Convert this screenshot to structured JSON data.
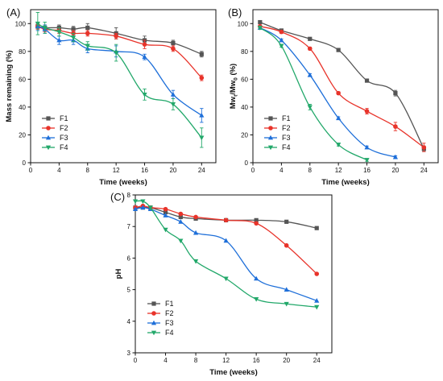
{
  "colors": {
    "F1": "#555555",
    "F2": "#e8332a",
    "F3": "#1e6fd9",
    "F4": "#22a86a"
  },
  "markers": {
    "F1": "square",
    "F2": "circle",
    "F3": "triangle-up",
    "F4": "triangle-down"
  },
  "chart_data": [
    {
      "type": "line",
      "panel_label": "(A)",
      "xlabel": "Time (weeks)",
      "ylabel": "Mass remaining (%)",
      "xlim": [
        0,
        26
      ],
      "ylim": [
        0,
        110
      ],
      "xticks": [
        0,
        4,
        8,
        12,
        16,
        20,
        24
      ],
      "yticks": [
        0,
        20,
        40,
        60,
        80,
        100
      ],
      "legend_position": "lower-left",
      "series": [
        {
          "name": "F1",
          "x": [
            1,
            2,
            4,
            6,
            8,
            12,
            16,
            20,
            24
          ],
          "y": [
            98,
            97,
            97,
            96,
            97,
            93,
            88,
            86,
            78
          ],
          "err": [
            2,
            2,
            2,
            2,
            3,
            4,
            3,
            2,
            2
          ]
        },
        {
          "name": "F2",
          "x": [
            1,
            2,
            4,
            6,
            8,
            12,
            16,
            20,
            24
          ],
          "y": [
            98,
            96,
            95,
            93,
            93,
            91,
            85,
            82,
            61
          ],
          "err": [
            2,
            2,
            2,
            2,
            2,
            2,
            3,
            2,
            2
          ]
        },
        {
          "name": "F3",
          "x": [
            1,
            2,
            4,
            6,
            8,
            12,
            16,
            20,
            24
          ],
          "y": [
            98,
            96,
            88,
            88,
            82,
            80,
            76,
            49,
            34
          ],
          "err": [
            3,
            3,
            3,
            3,
            3,
            4,
            2,
            3,
            5
          ]
        },
        {
          "name": "F4",
          "x": [
            1,
            2,
            4,
            6,
            8,
            12,
            16,
            20,
            24
          ],
          "y": [
            100,
            97,
            94,
            90,
            84,
            79,
            49,
            42,
            18
          ],
          "err": [
            8,
            4,
            3,
            3,
            3,
            6,
            4,
            4,
            7
          ]
        }
      ]
    },
    {
      "type": "line",
      "panel_label": "(B)",
      "xlabel": "Time (weeks)",
      "ylabel": "Mw",
      "ylabel_sub_1": "t",
      "ylabel_mid": "/Mw",
      "ylabel_sub_2": "0",
      "ylabel_end": " (%)",
      "xlim": [
        0,
        26
      ],
      "ylim": [
        0,
        110
      ],
      "xticks": [
        0,
        4,
        8,
        12,
        16,
        20,
        24
      ],
      "yticks": [
        0,
        20,
        40,
        60,
        80,
        100
      ],
      "legend_position": "lower-left",
      "series": [
        {
          "name": "F1",
          "x": [
            1,
            4,
            8,
            12,
            16,
            20,
            24
          ],
          "y": [
            101,
            95,
            89,
            81,
            59,
            50,
            10
          ],
          "err": [
            1,
            1,
            1,
            1,
            1,
            2,
            2
          ]
        },
        {
          "name": "F2",
          "x": [
            1,
            4,
            8,
            12,
            16,
            20,
            24
          ],
          "y": [
            98,
            94,
            82,
            50,
            37,
            26,
            11
          ],
          "err": [
            1,
            1,
            1,
            1,
            2,
            3,
            3
          ]
        },
        {
          "name": "F3",
          "x": [
            1,
            4,
            8,
            12,
            16,
            20
          ],
          "y": [
            97,
            88,
            63,
            32,
            11,
            4
          ],
          "err": [
            1,
            1,
            1,
            1,
            1,
            1
          ]
        },
        {
          "name": "F4",
          "x": [
            1,
            4,
            8,
            12,
            16
          ],
          "y": [
            97,
            84,
            40,
            13,
            2
          ],
          "err": [
            1,
            1,
            2,
            1,
            1
          ]
        }
      ]
    },
    {
      "type": "line",
      "panel_label": "(C)",
      "xlabel": "Time (weeks)",
      "ylabel": "pH",
      "xlim": [
        0,
        26
      ],
      "ylim": [
        3,
        8
      ],
      "xticks": [
        0,
        4,
        8,
        12,
        16,
        20,
        24
      ],
      "yticks": [
        3,
        4,
        5,
        6,
        7,
        8
      ],
      "legend_position": "lower-left",
      "series": [
        {
          "name": "F1",
          "x": [
            0,
            1,
            2,
            4,
            6,
            8,
            12,
            16,
            20,
            24
          ],
          "y": [
            7.6,
            7.6,
            7.6,
            7.45,
            7.3,
            7.25,
            7.2,
            7.2,
            7.15,
            6.95
          ]
        },
        {
          "name": "F2",
          "x": [
            0,
            1,
            2,
            4,
            6,
            8,
            12,
            16,
            20,
            24
          ],
          "y": [
            7.6,
            7.65,
            7.6,
            7.55,
            7.4,
            7.3,
            7.2,
            7.1,
            6.4,
            5.5
          ]
        },
        {
          "name": "F3",
          "x": [
            0,
            1,
            2,
            4,
            6,
            8,
            12,
            16,
            20,
            24
          ],
          "y": [
            7.55,
            7.6,
            7.55,
            7.35,
            7.15,
            6.8,
            6.55,
            5.35,
            5.0,
            4.65
          ]
        },
        {
          "name": "F4",
          "x": [
            0,
            1,
            2,
            4,
            6,
            8,
            12,
            16,
            20,
            24
          ],
          "y": [
            7.8,
            7.8,
            7.6,
            6.9,
            6.55,
            5.9,
            5.35,
            4.7,
            4.55,
            4.45
          ]
        }
      ]
    }
  ]
}
